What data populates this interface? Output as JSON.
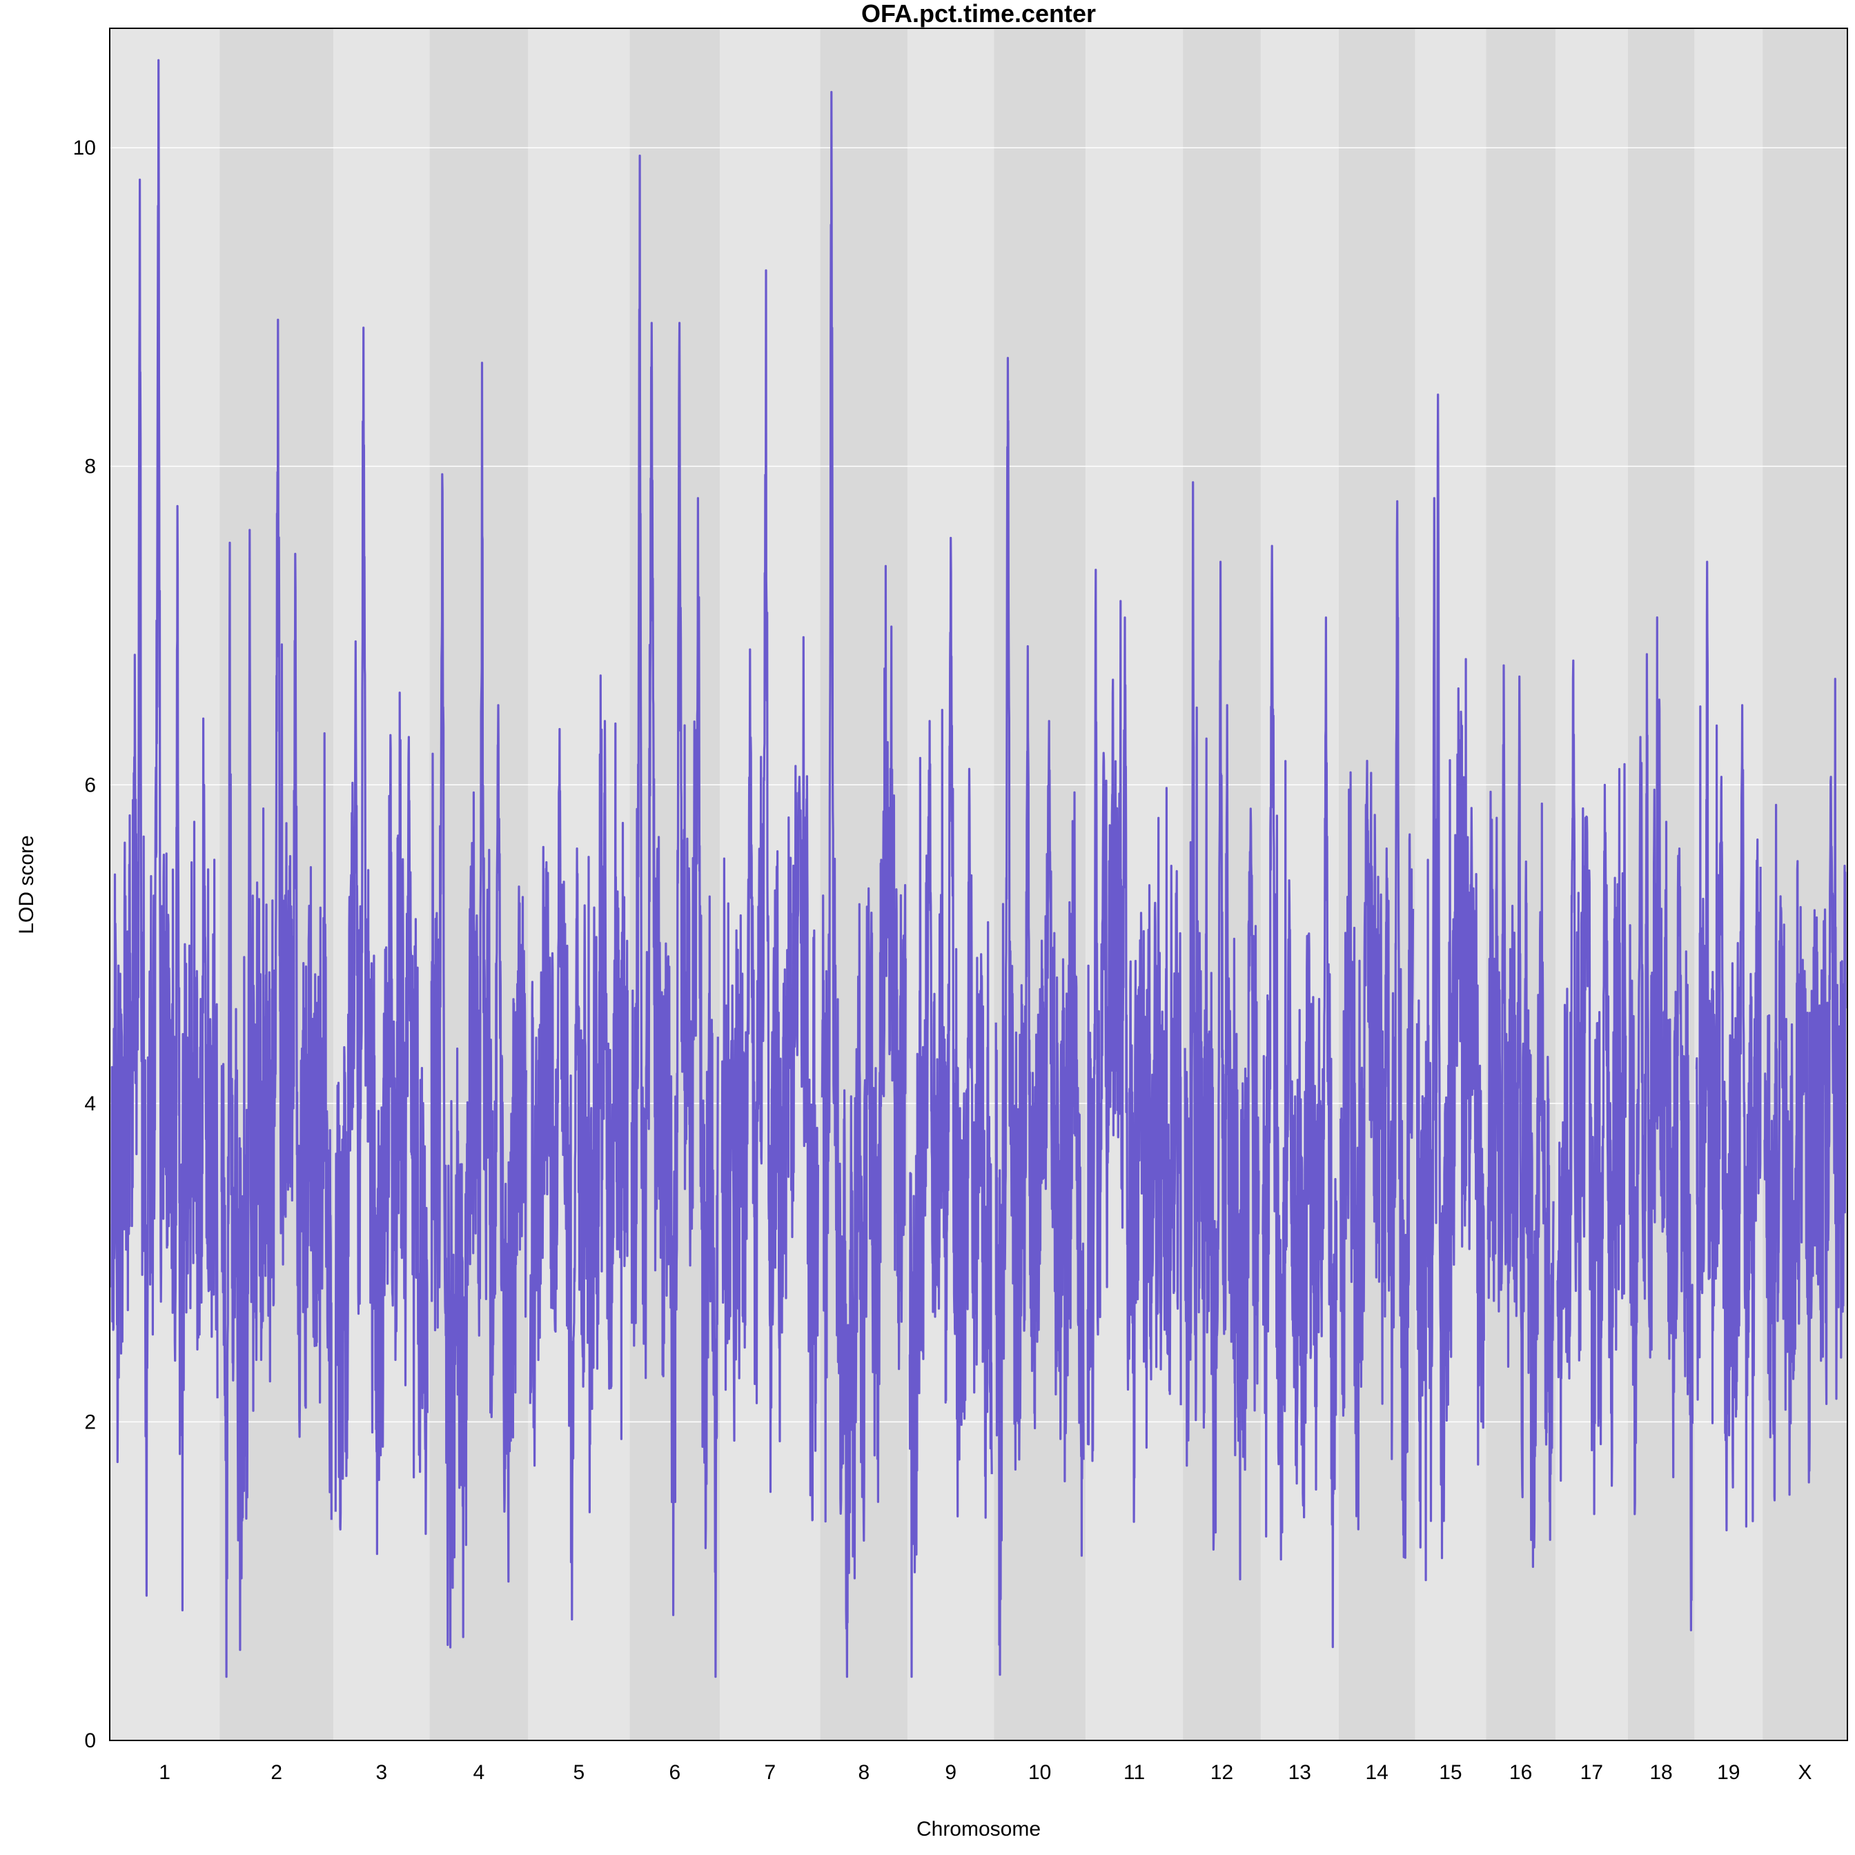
{
  "chart_data": {
    "type": "line",
    "title": "OFA.pct.time.center",
    "xlabel": "Chromosome",
    "ylabel": "LOD score",
    "ylim": [
      0,
      10.75
    ],
    "yticks": [
      0,
      2,
      4,
      6,
      8,
      10
    ],
    "grid": true,
    "line_color": "#6a5acd",
    "band_colors": [
      "#e5e5e5",
      "#d9d9d9"
    ],
    "chromosomes": [
      {
        "name": "1",
        "start": 0.0,
        "end": 7.9,
        "seed": 11,
        "peaks": [
          [
            3.5,
            10.55
          ],
          [
            2.1,
            9.8
          ],
          [
            4.9,
            7.75
          ],
          [
            6.9,
            6.0
          ]
        ]
      },
      {
        "name": "2",
        "start": 7.9,
        "end": 16.1,
        "seed": 23,
        "peaks": [
          [
            4.2,
            8.92
          ],
          [
            2.1,
            7.6
          ],
          [
            5.5,
            7.45
          ],
          [
            0.6,
            7.52
          ]
        ]
      },
      {
        "name": "3",
        "start": 16.1,
        "end": 23.0,
        "seed": 37,
        "peaks": [
          [
            2.1,
            8.87
          ],
          [
            1.5,
            6.9
          ],
          [
            5.5,
            6.3
          ]
        ]
      },
      {
        "name": "4",
        "start": 23.0,
        "end": 30.1,
        "seed": 41,
        "peaks": [
          [
            3.8,
            8.65
          ],
          [
            0.8,
            7.95
          ],
          [
            5.0,
            6.5
          ]
        ]
      },
      {
        "name": "5",
        "start": 30.1,
        "end": 37.4,
        "seed": 53,
        "peaks": [
          [
            2.2,
            6.35
          ],
          [
            5.6,
            6.4
          ],
          [
            3.5,
            5.6
          ]
        ]
      },
      {
        "name": "6",
        "start": 37.4,
        "end": 43.9,
        "seed": 61,
        "peaks": [
          [
            0.6,
            9.95
          ],
          [
            3.6,
            8.9
          ],
          [
            1.5,
            8.9
          ],
          [
            5.0,
            7.8
          ]
        ]
      },
      {
        "name": "7",
        "start": 43.9,
        "end": 51.1,
        "seed": 71,
        "peaks": [
          [
            3.3,
            9.23
          ],
          [
            2.1,
            6.85
          ],
          [
            5.8,
            6.05
          ]
        ]
      },
      {
        "name": "8",
        "start": 51.1,
        "end": 57.4,
        "seed": 83,
        "peaks": [
          [
            0.7,
            10.35
          ],
          [
            3.5,
            5.35
          ],
          [
            5.0,
            5.3
          ]
        ]
      },
      {
        "name": "9",
        "start": 57.4,
        "end": 63.6,
        "seed": 97,
        "peaks": [
          [
            3.1,
            7.55
          ],
          [
            1.5,
            6.4
          ],
          [
            4.5,
            6.1
          ]
        ]
      },
      {
        "name": "10",
        "start": 63.6,
        "end": 70.2,
        "seed": 101,
        "peaks": [
          [
            0.9,
            8.68
          ],
          [
            2.4,
            6.87
          ],
          [
            4.0,
            6.4
          ]
        ]
      },
      {
        "name": "11",
        "start": 70.2,
        "end": 77.2,
        "seed": 113,
        "peaks": [
          [
            0.6,
            7.35
          ],
          [
            2.8,
            7.05
          ],
          [
            1.2,
            6.2
          ]
        ]
      },
      {
        "name": "12",
        "start": 77.2,
        "end": 82.8,
        "seed": 127,
        "peaks": [
          [
            0.6,
            7.9
          ],
          [
            2.7,
            7.4
          ],
          [
            3.2,
            6.5
          ],
          [
            5.0,
            5.85
          ]
        ]
      },
      {
        "name": "13",
        "start": 82.8,
        "end": 88.4,
        "seed": 131,
        "peaks": [
          [
            0.7,
            7.5
          ],
          [
            4.8,
            7.05
          ],
          [
            2.0,
            5.4
          ]
        ]
      },
      {
        "name": "14",
        "start": 88.4,
        "end": 93.9,
        "seed": 137,
        "peaks": [
          [
            4.3,
            7.78
          ],
          [
            2.0,
            6.15
          ],
          [
            3.5,
            5.6
          ]
        ]
      },
      {
        "name": "15",
        "start": 93.9,
        "end": 99.0,
        "seed": 149,
        "peaks": [
          [
            1.6,
            8.45
          ],
          [
            1.3,
            7.8
          ],
          [
            4.3,
            5.35
          ]
        ]
      },
      {
        "name": "16",
        "start": 99.0,
        "end": 104.0,
        "seed": 151,
        "peaks": [
          [
            1.2,
            6.75
          ],
          [
            2.4,
            6.68
          ],
          [
            4.0,
            5.2
          ]
        ]
      },
      {
        "name": "17",
        "start": 104.0,
        "end": 109.2,
        "seed": 163,
        "peaks": [
          [
            1.2,
            6.78
          ],
          [
            3.6,
            6.0
          ],
          [
            2.2,
            5.8
          ]
        ]
      },
      {
        "name": "18",
        "start": 109.2,
        "end": 114.0,
        "seed": 173,
        "peaks": [
          [
            1.3,
            6.82
          ],
          [
            0.8,
            6.3
          ],
          [
            3.8,
            5.6
          ]
        ]
      },
      {
        "name": "19",
        "start": 114.0,
        "end": 118.9,
        "seed": 181,
        "peaks": [
          [
            0.8,
            7.4
          ],
          [
            3.5,
            6.5
          ],
          [
            1.9,
            6.05
          ]
        ]
      },
      {
        "name": "X",
        "start": 118.9,
        "end": 125.0,
        "seed": 191,
        "peaks": [
          [
            5.0,
            6.05
          ],
          [
            1.2,
            5.3
          ],
          [
            3.0,
            4.8
          ]
        ]
      }
    ]
  }
}
